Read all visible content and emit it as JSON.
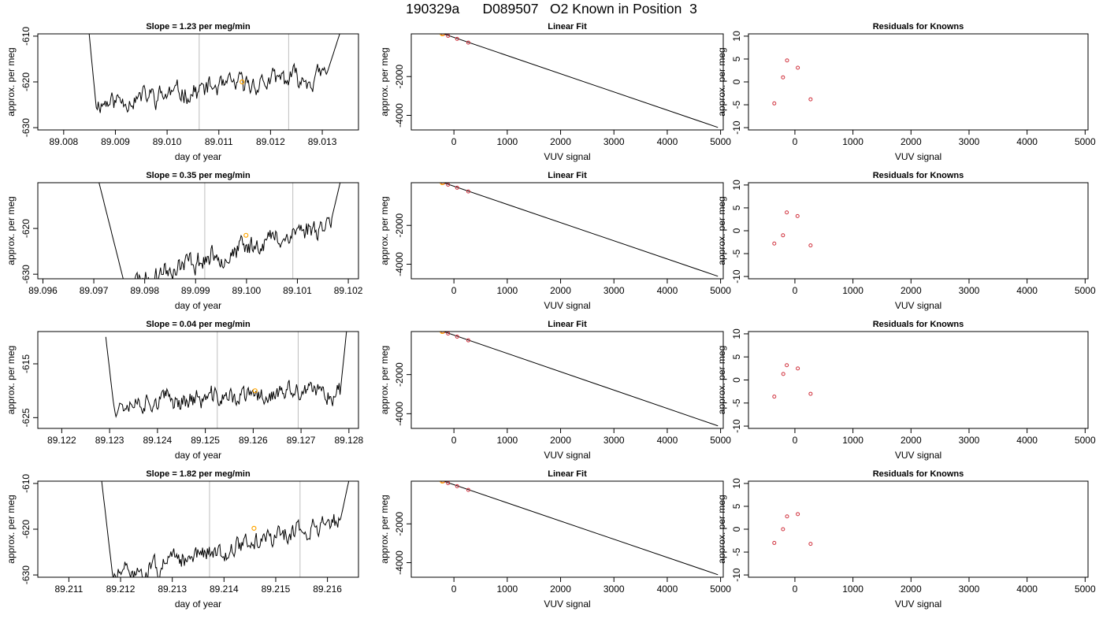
{
  "title": "190329a      D089507   O2 Known in Position  3",
  "colors": {
    "trace": "#000000",
    "vline": "#bebebe",
    "marker": "#ffa500",
    "residual": "#d0303c",
    "axis": "#000000"
  },
  "chart_data": [
    {
      "type": "line",
      "panel": "trace",
      "row": 1,
      "title": "Slope =  1.23  per meg/min",
      "xlabel": "day of year",
      "ylabel": "approx. per meg",
      "xlim": [
        89.0075,
        89.0137
      ],
      "ylim": [
        -630.5,
        -609.5
      ],
      "xticks": [
        "89.008",
        "89.009",
        "89.010",
        "89.011",
        "89.012",
        "89.013"
      ],
      "yticks": [
        "-610",
        "-620",
        "-630"
      ],
      "vlines": [
        89.01062,
        89.01235
      ],
      "marker": [
        89.01145,
        -620.0
      ],
      "curve": {
        "seed": 11,
        "t0": 89.00848,
        "t1": 89.01338,
        "dropStart": 89.00848,
        "dropEnd": 89.00862,
        "riseStart": 89.01308,
        "riseEnd": 89.01338,
        "yStart": -608,
        "yEnd": -608,
        "base0": -624.5,
        "base1": -618.5,
        "amp": 2.3
      }
    },
    {
      "type": "line",
      "panel": "fit",
      "row": 1,
      "title": "Linear Fit",
      "xlabel": "VUV signal",
      "ylabel": "approx. per meg",
      "xlim": [
        -800,
        5050
      ],
      "ylim": [
        -4750,
        200
      ],
      "xticks": [
        "0",
        "1000",
        "2000",
        "3000",
        "4000",
        "5000"
      ],
      "yticks": [
        "-2000",
        "-4000"
      ],
      "line": [
        [
          -600,
          580
        ],
        [
          4950,
          -4620
        ]
      ],
      "points": [
        [
          -360,
          340
        ],
        [
          -200,
          190
        ],
        [
          -110,
          100
        ],
        [
          60,
          -60
        ],
        [
          270,
          -250
        ]
      ],
      "marker": [
        -220,
        205
      ]
    },
    {
      "type": "scatter",
      "panel": "resid",
      "row": 1,
      "title": "Residuals for Knowns",
      "xlabel": "VUV signal",
      "ylabel": "approx. per meg",
      "xlim": [
        -800,
        5050
      ],
      "ylim": [
        -10.5,
        10.5
      ],
      "xticks": [
        "0",
        "1000",
        "2000",
        "3000",
        "4000",
        "5000"
      ],
      "yticks": [
        "-10",
        "-5",
        "0",
        "5",
        "10"
      ],
      "points": [
        [
          -355,
          -4.7
        ],
        [
          -205,
          1.0
        ],
        [
          -135,
          4.7
        ],
        [
          50,
          3.1
        ],
        [
          270,
          -3.8
        ]
      ]
    },
    {
      "type": "line",
      "panel": "trace",
      "row": 2,
      "title": "Slope =  0.35  per meg/min",
      "xlabel": "day of year",
      "ylabel": "approx. per meg",
      "xlim": [
        89.0959,
        89.1022
      ],
      "ylim": [
        -631,
        -610
      ],
      "xticks": [
        "89.096",
        "89.097",
        "89.098",
        "89.099",
        "89.100",
        "89.101",
        "89.102"
      ],
      "yticks": [
        "-620",
        "-630"
      ],
      "vlines": [
        89.09918,
        89.10091
      ],
      "marker": [
        89.09999,
        -621.5
      ],
      "curve": {
        "seed": 23,
        "t0": 89.09708,
        "t1": 89.10186,
        "dropStart": 89.09708,
        "dropEnd": 89.0976,
        "riseStart": 89.10166,
        "riseEnd": 89.10186,
        "yStart": -609,
        "yEnd": -609,
        "base0": -632.0,
        "base1": -618.5,
        "amp": 2.4
      }
    },
    {
      "type": "line",
      "panel": "fit",
      "row": 2,
      "title": "Linear Fit",
      "xlabel": "VUV signal",
      "ylabel": "approx. per meg",
      "xlim": [
        -800,
        5050
      ],
      "ylim": [
        -4750,
        200
      ],
      "xticks": [
        "0",
        "1000",
        "2000",
        "3000",
        "4000",
        "5000"
      ],
      "yticks": [
        "-2000",
        "-4000"
      ],
      "line": [
        [
          -600,
          580
        ],
        [
          4950,
          -4620
        ]
      ],
      "points": [
        [
          -360,
          340
        ],
        [
          -200,
          190
        ],
        [
          -110,
          100
        ],
        [
          60,
          -60
        ],
        [
          270,
          -250
        ]
      ],
      "marker": [
        -220,
        205
      ]
    },
    {
      "type": "scatter",
      "panel": "resid",
      "row": 2,
      "title": "Residuals for Knowns",
      "xlabel": "VUV signal",
      "ylabel": "approx. per meg",
      "xlim": [
        -800,
        5050
      ],
      "ylim": [
        -10.5,
        10.5
      ],
      "xticks": [
        "0",
        "1000",
        "2000",
        "3000",
        "4000",
        "5000"
      ],
      "yticks": [
        "-10",
        "-5",
        "0",
        "5",
        "10"
      ],
      "points": [
        [
          -355,
          -2.8
        ],
        [
          -205,
          -1.0
        ],
        [
          -140,
          4.0
        ],
        [
          45,
          3.2
        ],
        [
          270,
          -3.2
        ]
      ]
    },
    {
      "type": "line",
      "panel": "trace",
      "row": 3,
      "title": "Slope =  0.04  per meg/min",
      "xlabel": "day of year",
      "ylabel": "approx. per meg",
      "xlim": [
        89.1215,
        89.1282
      ],
      "ylim": [
        -627,
        -609
      ],
      "xticks": [
        "89.122",
        "89.123",
        "89.124",
        "89.125",
        "89.126",
        "89.127",
        "89.128"
      ],
      "yticks": [
        "-615",
        "-625"
      ],
      "vlines": [
        89.12525,
        89.12694
      ],
      "marker": [
        89.12604,
        -620.0
      ],
      "curve": {
        "seed": 37,
        "t0": 89.12292,
        "t1": 89.12795,
        "dropStart": 89.12292,
        "dropEnd": 89.12308,
        "riseStart": 89.12782,
        "riseEnd": 89.12795,
        "yStart": -610,
        "yEnd": -609,
        "base0": -622.3,
        "base1": -620.2,
        "amp": 1.9
      }
    },
    {
      "type": "line",
      "panel": "fit",
      "row": 3,
      "title": "Linear Fit",
      "xlabel": "VUV signal",
      "ylabel": "approx. per meg",
      "xlim": [
        -800,
        5050
      ],
      "ylim": [
        -4750,
        200
      ],
      "xticks": [
        "0",
        "1000",
        "2000",
        "3000",
        "4000",
        "5000"
      ],
      "yticks": [
        "-2000",
        "-4000"
      ],
      "line": [
        [
          -600,
          580
        ],
        [
          4950,
          -4620
        ]
      ],
      "points": [
        [
          -360,
          340
        ],
        [
          -200,
          190
        ],
        [
          -110,
          100
        ],
        [
          60,
          -60
        ],
        [
          270,
          -250
        ]
      ],
      "marker": [
        -220,
        205
      ]
    },
    {
      "type": "scatter",
      "panel": "resid",
      "row": 3,
      "title": "Residuals for Knowns",
      "xlabel": "VUV signal",
      "ylabel": "approx. per meg",
      "xlim": [
        -800,
        5050
      ],
      "ylim": [
        -10.5,
        10.5
      ],
      "xticks": [
        "0",
        "1000",
        "2000",
        "3000",
        "4000",
        "5000"
      ],
      "yticks": [
        "-10",
        "-5",
        "0",
        "5",
        "10"
      ],
      "points": [
        [
          -355,
          -3.6
        ],
        [
          -200,
          1.3
        ],
        [
          -140,
          3.2
        ],
        [
          50,
          2.5
        ],
        [
          270,
          -3.0
        ]
      ]
    },
    {
      "type": "line",
      "panel": "trace",
      "row": 4,
      "title": "Slope =  1.82  per meg/min",
      "xlabel": "day of year",
      "ylabel": "approx. per meg",
      "xlim": [
        89.2104,
        89.2166
      ],
      "ylim": [
        -630.5,
        -609.5
      ],
      "xticks": [
        "89.211",
        "89.212",
        "89.213",
        "89.214",
        "89.215",
        "89.216"
      ],
      "yticks": [
        "-610",
        "-620",
        "-630"
      ],
      "vlines": [
        89.21372,
        89.21547
      ],
      "marker": [
        89.21458,
        -619.8
      ],
      "curve": {
        "seed": 51,
        "t0": 89.21162,
        "t1": 89.21644,
        "dropStart": 89.21162,
        "dropEnd": 89.21185,
        "riseStart": 89.21625,
        "riseEnd": 89.21644,
        "yStart": -608,
        "yEnd": -608,
        "base0": -630.5,
        "base1": -618.0,
        "amp": 2.2
      }
    },
    {
      "type": "line",
      "panel": "fit",
      "row": 4,
      "title": "Linear Fit",
      "xlabel": "VUV signal",
      "ylabel": "approx. per meg",
      "xlim": [
        -800,
        5050
      ],
      "ylim": [
        -4750,
        200
      ],
      "xticks": [
        "0",
        "1000",
        "2000",
        "3000",
        "4000",
        "5000"
      ],
      "yticks": [
        "-2000",
        "-4000"
      ],
      "line": [
        [
          -600,
          580
        ],
        [
          4950,
          -4620
        ]
      ],
      "points": [
        [
          -360,
          340
        ],
        [
          -200,
          190
        ],
        [
          -110,
          100
        ],
        [
          60,
          -60
        ],
        [
          270,
          -250
        ]
      ],
      "marker": [
        -220,
        205
      ]
    },
    {
      "type": "scatter",
      "panel": "resid",
      "row": 4,
      "title": "Residuals for Knowns",
      "xlabel": "VUV signal",
      "ylabel": "approx. per meg",
      "xlim": [
        -800,
        5050
      ],
      "ylim": [
        -10.5,
        10.5
      ],
      "xticks": [
        "0",
        "1000",
        "2000",
        "3000",
        "4000",
        "5000"
      ],
      "yticks": [
        "-10",
        "-5",
        "0",
        "5",
        "10"
      ],
      "points": [
        [
          -355,
          -3.0
        ],
        [
          -205,
          0.0
        ],
        [
          -135,
          2.8
        ],
        [
          50,
          3.3
        ],
        [
          270,
          -3.2
        ]
      ]
    }
  ]
}
